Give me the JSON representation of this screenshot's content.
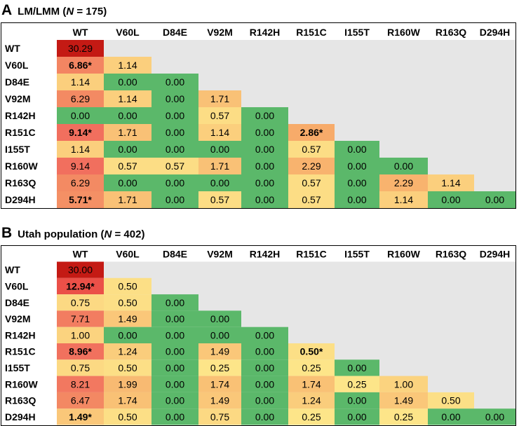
{
  "panels": [
    {
      "letter": "A",
      "title_prefix": "LM/LMM (",
      "title_n": "N",
      "title_suffix": " = 175)",
      "columns": [
        "WT",
        "V60L",
        "D84E",
        "V92M",
        "R142H",
        "R151C",
        "I155T",
        "R160W",
        "R163Q",
        "D294H"
      ],
      "rows": [
        "WT",
        "V60L",
        "D84E",
        "V92M",
        "R142H",
        "R151C",
        "I155T",
        "R160W",
        "R163Q",
        "D294H"
      ],
      "cells": [
        [
          "30.29"
        ],
        [
          "6.86*",
          "1.14"
        ],
        [
          "1.14",
          "0.00",
          "0.00"
        ],
        [
          "6.29",
          "1.14",
          "0.00",
          "1.71"
        ],
        [
          "0.00",
          "0.00",
          "0.00",
          "0.57",
          "0.00"
        ],
        [
          "9.14*",
          "1.71",
          "0.00",
          "1.14",
          "0.00",
          "2.86*"
        ],
        [
          "1.14",
          "0.00",
          "0.00",
          "0.00",
          "0.00",
          "0.57",
          "0.00"
        ],
        [
          "9.14",
          "0.57",
          "0.57",
          "1.71",
          "0.00",
          "2.29",
          "0.00",
          "0.00"
        ],
        [
          "6.29",
          "0.00",
          "0.00",
          "0.00",
          "0.00",
          "0.57",
          "0.00",
          "2.29",
          "1.14"
        ],
        [
          "5.71*",
          "1.71",
          "0.00",
          "0.57",
          "0.00",
          "0.57",
          "0.00",
          "1.14",
          "0.00",
          "0.00"
        ]
      ]
    },
    {
      "letter": "B",
      "title_prefix": "Utah population (",
      "title_n": "N",
      "title_suffix": " = 402)",
      "columns": [
        "WT",
        "V60L",
        "D84E",
        "V92M",
        "R142H",
        "R151C",
        "I155T",
        "R160W",
        "R163Q",
        "D294H"
      ],
      "rows": [
        "WT",
        "V60L",
        "D84E",
        "V92M",
        "R142H",
        "R151C",
        "I155T",
        "R160W",
        "R163Q",
        "D294H"
      ],
      "cells": [
        [
          "30.00"
        ],
        [
          "12.94*",
          "0.50"
        ],
        [
          "0.75",
          "0.50",
          "0.00"
        ],
        [
          "7.71",
          "1.49",
          "0.00",
          "0.00"
        ],
        [
          "1.00",
          "0.00",
          "0.00",
          "0.00",
          "0.00"
        ],
        [
          "8.96*",
          "1.24",
          "0.00",
          "1.49",
          "0.00",
          "0.50*"
        ],
        [
          "0.75",
          "0.50",
          "0.00",
          "0.25",
          "0.00",
          "0.25",
          "0.00"
        ],
        [
          "8.21",
          "1.99",
          "0.00",
          "1.74",
          "0.00",
          "1.74",
          "0.25",
          "1.00"
        ],
        [
          "6.47",
          "1.74",
          "0.00",
          "1.49",
          "0.00",
          "1.24",
          "0.00",
          "1.49",
          "0.50"
        ],
        [
          "1.49*",
          "0.50",
          "0.00",
          "0.75",
          "0.00",
          "0.25",
          "0.00",
          "0.25",
          "0.00",
          "0.00"
        ]
      ]
    }
  ],
  "chart_data": [
    {
      "type": "heatmap",
      "title": "LM/LMM (N = 175)",
      "categories": [
        "WT",
        "V60L",
        "D84E",
        "V92M",
        "R142H",
        "R151C",
        "I155T",
        "R160W",
        "R163Q",
        "D294H"
      ],
      "values": [
        [
          30.29
        ],
        [
          6.86,
          1.14
        ],
        [
          1.14,
          0.0,
          0.0
        ],
        [
          6.29,
          1.14,
          0.0,
          1.71
        ],
        [
          0.0,
          0.0,
          0.0,
          0.57,
          0.0
        ],
        [
          9.14,
          1.71,
          0.0,
          1.14,
          0.0,
          2.86
        ],
        [
          1.14,
          0.0,
          0.0,
          0.0,
          0.0,
          0.57,
          0.0
        ],
        [
          9.14,
          0.57,
          0.57,
          1.71,
          0.0,
          2.29,
          0.0,
          0.0
        ],
        [
          6.29,
          0.0,
          0.0,
          0.0,
          0.0,
          0.57,
          0.0,
          2.29,
          1.14
        ],
        [
          5.71,
          1.71,
          0.0,
          0.57,
          0.0,
          0.57,
          0.0,
          1.14,
          0.0,
          0.0
        ]
      ]
    },
    {
      "type": "heatmap",
      "title": "Utah population (N = 402)",
      "categories": [
        "WT",
        "V60L",
        "D84E",
        "V92M",
        "R142H",
        "R151C",
        "I155T",
        "R160W",
        "R163Q",
        "D294H"
      ],
      "values": [
        [
          30.0
        ],
        [
          12.94,
          0.5
        ],
        [
          0.75,
          0.5,
          0.0
        ],
        [
          7.71,
          1.49,
          0.0,
          0.0
        ],
        [
          1.0,
          0.0,
          0.0,
          0.0,
          0.0
        ],
        [
          8.96,
          1.24,
          0.0,
          1.49,
          0.0,
          0.5
        ],
        [
          0.75,
          0.5,
          0.0,
          0.25,
          0.0,
          0.25,
          0.0
        ],
        [
          8.21,
          1.99,
          0.0,
          1.74,
          0.0,
          1.74,
          0.25,
          1.0
        ],
        [
          6.47,
          1.74,
          0.0,
          1.49,
          0.0,
          1.24,
          0.0,
          1.49,
          0.5
        ],
        [
          1.49,
          0.5,
          0.0,
          0.75,
          0.0,
          0.25,
          0.0,
          0.25,
          0.0,
          0.0
        ]
      ]
    }
  ],
  "colors": {
    "zero": "#5bb86a",
    "low": "#fde68a",
    "mid": "#f7ae6b",
    "high": "#f0675c",
    "max": "#c41a14",
    "blank": "#e6e6e6"
  }
}
